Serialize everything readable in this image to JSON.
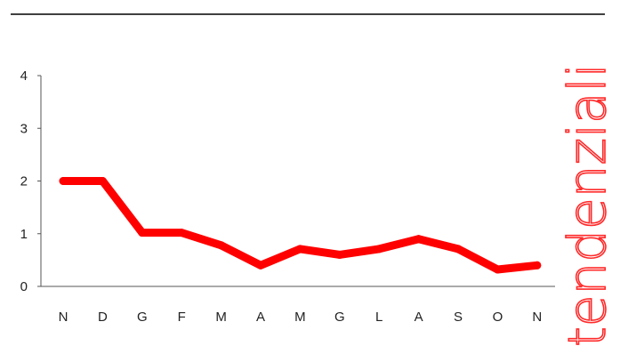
{
  "side_label": "tendenziali",
  "colors": {
    "series": "#ff0000",
    "side_label": "#ff2a2a",
    "axis": "#555555",
    "rule": "#000000"
  },
  "chart_data": {
    "type": "line",
    "categories": [
      "N",
      "D",
      "G",
      "F",
      "M",
      "A",
      "M",
      "G",
      "L",
      "A",
      "S",
      "O",
      "N"
    ],
    "series": [
      {
        "values": [
          2.0,
          2.0,
          1.02,
          1.02,
          0.78,
          0.4,
          0.71,
          0.6,
          0.71,
          0.9,
          0.71,
          0.32,
          0.4
        ]
      }
    ],
    "yticks": [
      0,
      1,
      2,
      3,
      4
    ],
    "ylim": [
      0,
      4
    ],
    "title": "",
    "xlabel": "",
    "ylabel": "",
    "grid": false,
    "legend": "none"
  }
}
